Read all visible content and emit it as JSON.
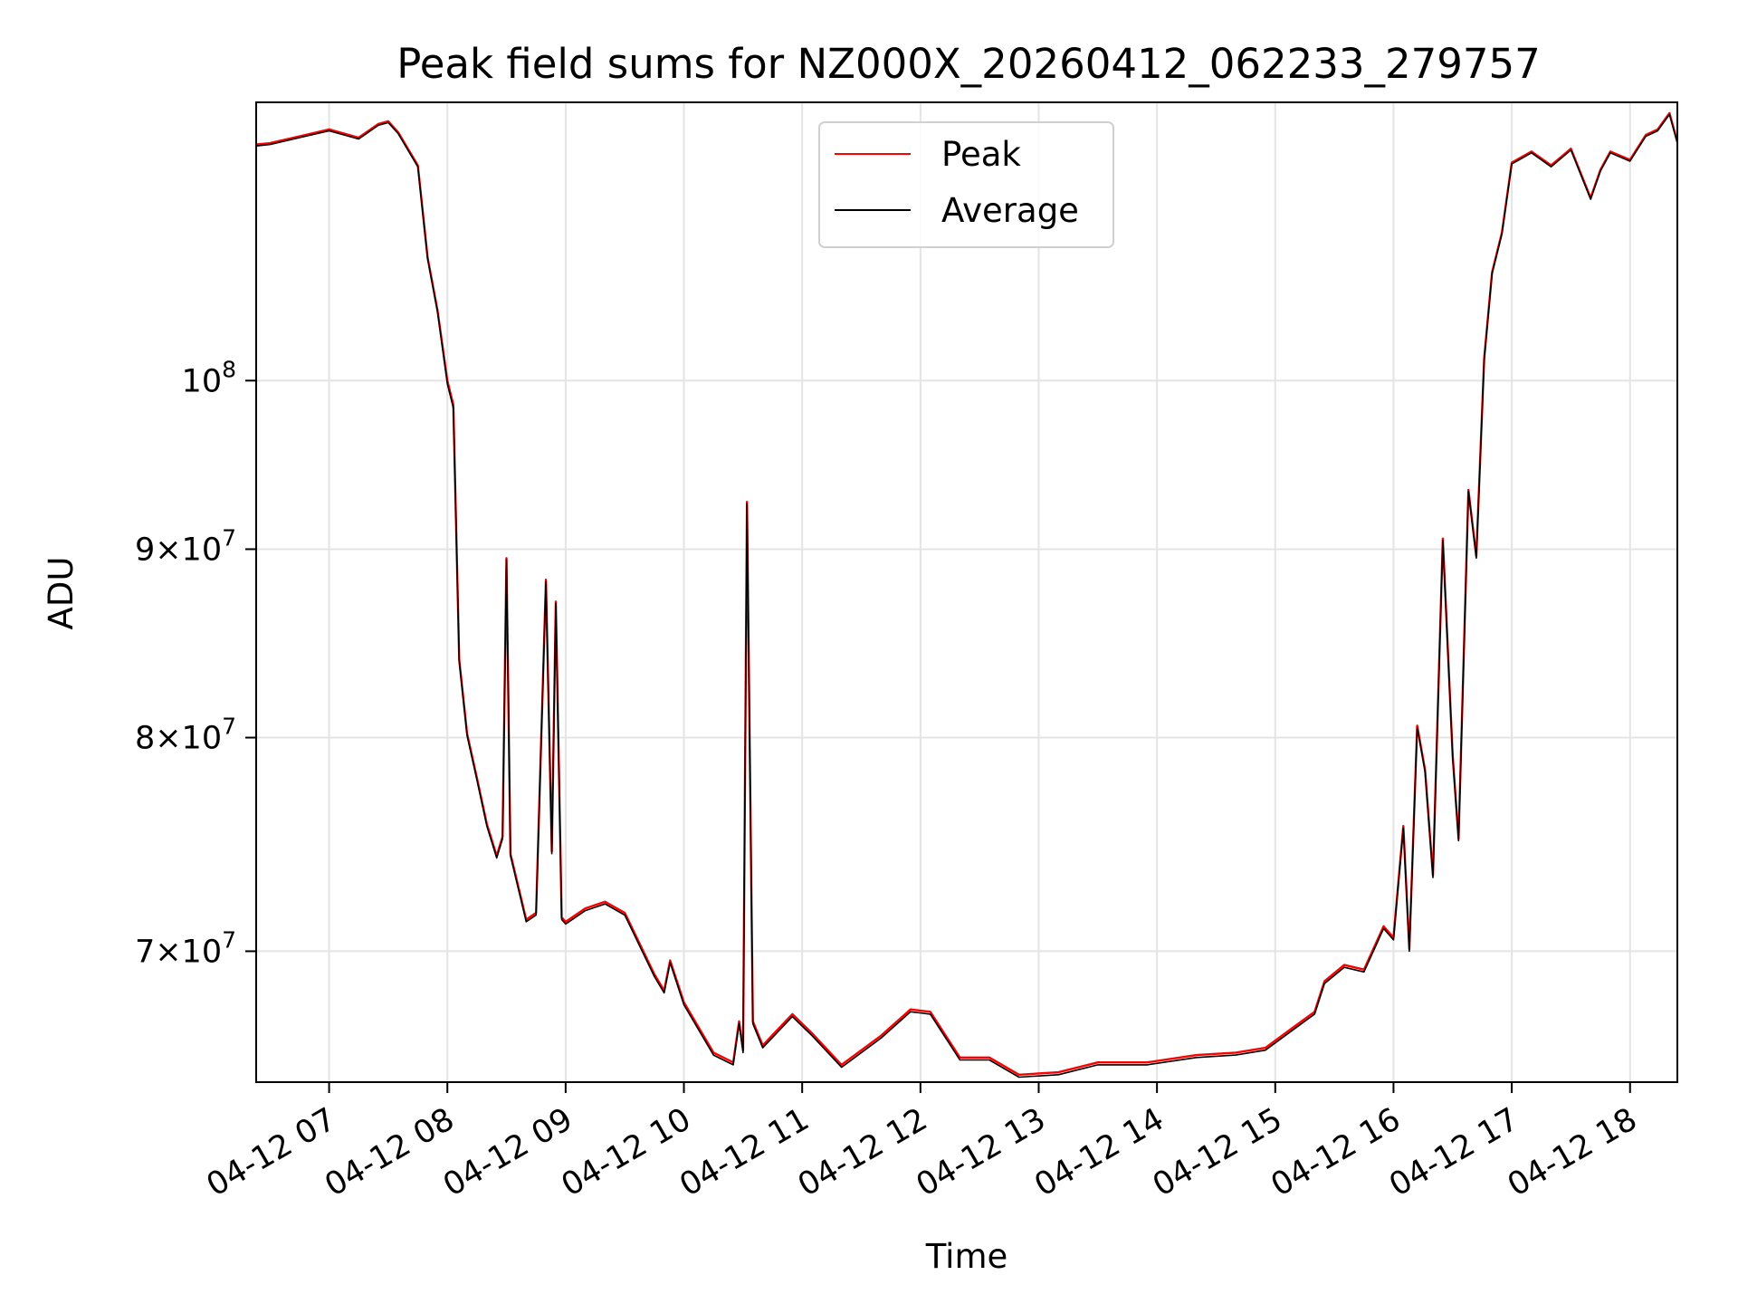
{
  "chart_data": {
    "type": "line",
    "title": "Peak field sums for NZ000X_20260412_062233_279757",
    "xlabel": "Time",
    "ylabel": "ADU",
    "yscale": "log",
    "ylim": [
      64500000,
      119000000
    ],
    "xlim": [
      "04-12 06:23",
      "04-12 18:24"
    ],
    "grid": true,
    "legend_position": "upper center",
    "x_ticks": [
      "04-12 07",
      "04-12 08",
      "04-12 09",
      "04-12 10",
      "04-12 11",
      "04-12 12",
      "04-12 13",
      "04-12 14",
      "04-12 15",
      "04-12 16",
      "04-12 17",
      "04-12 18"
    ],
    "y_ticks": [
      {
        "value": 70000000,
        "mantissa": "7",
        "exponent": "7"
      },
      {
        "value": 80000000,
        "mantissa": "8",
        "exponent": "7"
      },
      {
        "value": 90000000,
        "mantissa": "9",
        "exponent": "7"
      },
      {
        "value": 100000000,
        "mantissa": "",
        "exponent": "8"
      }
    ],
    "x": [
      "04-12 06:23",
      "04-12 06:30",
      "04-12 06:45",
      "04-12 07:00",
      "04-12 07:15",
      "04-12 07:25",
      "04-12 07:30",
      "04-12 07:35",
      "04-12 07:45",
      "04-12 07:50",
      "04-12 07:55",
      "04-12 08:00",
      "04-12 08:03",
      "04-12 08:06",
      "04-12 08:10",
      "04-12 08:15",
      "04-12 08:20",
      "04-12 08:25",
      "04-12 08:28",
      "04-12 08:30",
      "04-12 08:32",
      "04-12 08:40",
      "04-12 08:45",
      "04-12 08:50",
      "04-12 08:53",
      "04-12 08:55",
      "04-12 08:58",
      "04-12 09:00",
      "04-12 09:05",
      "04-12 09:10",
      "04-12 09:20",
      "04-12 09:30",
      "04-12 09:45",
      "04-12 09:50",
      "04-12 09:53",
      "04-12 10:00",
      "04-12 10:15",
      "04-12 10:25",
      "04-12 10:28",
      "04-12 10:30",
      "04-12 10:32",
      "04-12 10:35",
      "04-12 10:40",
      "04-12 10:55",
      "04-12 11:05",
      "04-12 11:20",
      "04-12 11:40",
      "04-12 11:55",
      "04-12 12:05",
      "04-12 12:20",
      "04-12 12:35",
      "04-12 12:50",
      "04-12 13:10",
      "04-12 13:30",
      "04-12 13:55",
      "04-12 14:20",
      "04-12 14:40",
      "04-12 14:55",
      "04-12 15:10",
      "04-12 15:20",
      "04-12 15:25",
      "04-12 15:35",
      "04-12 15:45",
      "04-12 15:55",
      "04-12 16:00",
      "04-12 16:05",
      "04-12 16:08",
      "04-12 16:12",
      "04-12 16:16",
      "04-12 16:20",
      "04-12 16:25",
      "04-12 16:30",
      "04-12 16:33",
      "04-12 16:38",
      "04-12 16:42",
      "04-12 16:46",
      "04-12 16:50",
      "04-12 16:55",
      "04-12 17:00",
      "04-12 17:10",
      "04-12 17:20",
      "04-12 17:30",
      "04-12 17:40",
      "04-12 17:45",
      "04-12 17:50",
      "04-12 18:00",
      "04-12 18:08",
      "04-12 18:14",
      "04-12 18:20",
      "04-12 18:24"
    ],
    "series": [
      {
        "name": "Peak",
        "color": "#ff0000",
        "values": [
          115900000,
          116000000,
          116500000,
          117000000,
          116400000,
          117400000,
          117600000,
          116800000,
          114400000,
          108000000,
          104500000,
          100000000,
          98500000,
          84000000,
          80200000,
          78000000,
          75800000,
          74300000,
          75200000,
          89500000,
          74400000,
          71400000,
          71700000,
          88300000,
          74500000,
          87100000,
          71500000,
          71300000,
          71600000,
          71900000,
          72200000,
          71700000,
          69000000,
          68300000,
          69600000,
          67800000,
          65700000,
          65300000,
          67000000,
          65800000,
          92700000,
          67000000,
          66000000,
          67300000,
          66500000,
          65200000,
          66400000,
          67500000,
          67400000,
          65500000,
          65500000,
          64800000,
          64900000,
          65300000,
          65300000,
          65600000,
          65700000,
          65900000,
          66800000,
          67400000,
          68700000,
          69400000,
          69200000,
          71100000,
          70600000,
          75700000,
          70100000,
          80600000,
          78400000,
          73400000,
          90600000,
          79100000,
          75100000,
          93400000,
          89600000,
          101400000,
          107000000,
          109700000,
          114600000,
          115400000,
          114400000,
          115600000,
          112100000,
          114100000,
          115400000,
          114800000,
          116600000,
          117000000,
          118200000,
          116100000
        ]
      },
      {
        "name": "Average",
        "color": "#000000",
        "values": [
          115800000,
          115900000,
          116400000,
          116900000,
          116300000,
          117300000,
          117500000,
          116700000,
          114300000,
          107900000,
          104400000,
          99800000,
          98300000,
          83900000,
          80100000,
          77900000,
          75700000,
          74200000,
          75100000,
          89400000,
          74300000,
          71300000,
          71600000,
          88200000,
          74400000,
          87000000,
          71400000,
          71200000,
          71500000,
          71800000,
          72100000,
          71600000,
          68900000,
          68200000,
          69500000,
          67700000,
          65600000,
          65200000,
          66900000,
          65700000,
          92600000,
          66900000,
          65900000,
          67200000,
          66400000,
          65100000,
          66300000,
          67400000,
          67300000,
          65400000,
          65400000,
          64700000,
          64800000,
          65200000,
          65200000,
          65500000,
          65600000,
          65800000,
          66700000,
          67300000,
          68600000,
          69300000,
          69100000,
          71000000,
          70500000,
          75600000,
          70000000,
          80500000,
          78300000,
          73300000,
          90500000,
          79000000,
          75000000,
          93300000,
          89500000,
          101300000,
          106900000,
          109600000,
          114500000,
          115300000,
          114300000,
          115500000,
          112000000,
          114000000,
          115300000,
          114700000,
          116500000,
          116900000,
          118100000,
          116000000
        ]
      }
    ]
  }
}
